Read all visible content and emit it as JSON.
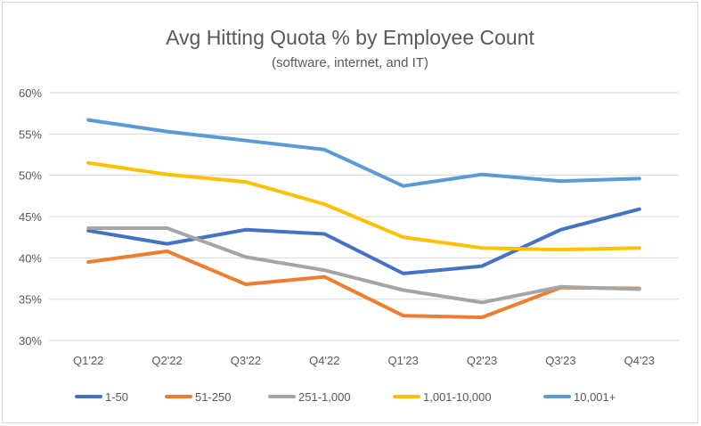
{
  "chart_data": {
    "type": "line",
    "title": "Avg Hitting Quota % by Employee Count",
    "subtitle": "(software, internet, and IT)",
    "xlabel": "",
    "ylabel": "",
    "categories": [
      "Q1'22",
      "Q2'22",
      "Q3'22",
      "Q4'22",
      "Q1'23",
      "Q2'23",
      "Q3'23",
      "Q4'23"
    ],
    "ylim": [
      30,
      60
    ],
    "yticks": [
      30,
      35,
      40,
      45,
      50,
      55,
      60
    ],
    "ytick_labels": [
      "30%",
      "35%",
      "40%",
      "45%",
      "50%",
      "55%",
      "60%"
    ],
    "grid": true,
    "legend_position": "bottom",
    "series": [
      {
        "name": "1-50",
        "color": "#4472c4",
        "values": [
          43.3,
          41.7,
          43.4,
          42.9,
          38.1,
          39.0,
          43.4,
          45.9
        ]
      },
      {
        "name": "51-250",
        "color": "#ed7d31",
        "values": [
          39.5,
          40.8,
          36.8,
          37.7,
          33.0,
          32.8,
          36.4,
          36.3
        ]
      },
      {
        "name": "251-1,000",
        "color": "#a5a5a5",
        "values": [
          43.6,
          43.6,
          40.1,
          38.5,
          36.1,
          34.6,
          36.5,
          36.2
        ]
      },
      {
        "name": "1,001-10,000",
        "color": "#ffc000",
        "values": [
          51.5,
          50.1,
          49.2,
          46.5,
          42.5,
          41.2,
          41.0,
          41.2
        ]
      },
      {
        "name": "10,001+",
        "color": "#5b9bd5",
        "values": [
          56.7,
          55.3,
          54.2,
          53.1,
          48.7,
          50.1,
          49.3,
          49.6
        ]
      }
    ]
  }
}
